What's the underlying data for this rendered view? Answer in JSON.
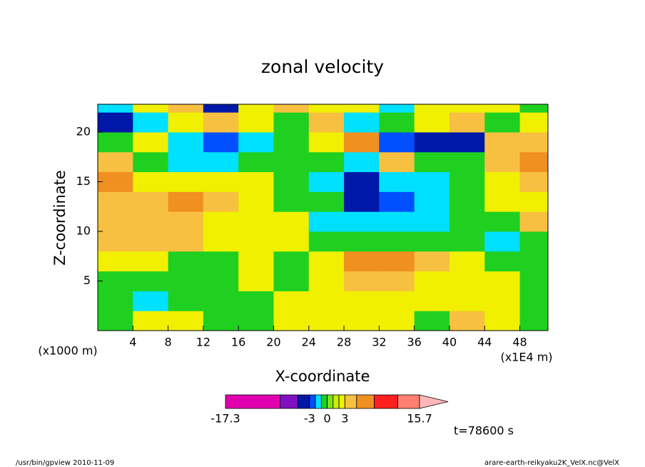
{
  "chart_data": {
    "type": "contour",
    "title": "zonal velocity",
    "x_label": "X-coordinate",
    "y_label": "Z-coordinate",
    "x_unit_label": "(x1E4 m)",
    "y_unit_label": "(x1000 m)",
    "annotation": "t=78600 s",
    "xlim": [
      0,
      51.2
    ],
    "ylim": [
      0,
      22.8
    ],
    "xticks": [
      4,
      8,
      12,
      16,
      20,
      24,
      28,
      32,
      36,
      40,
      44,
      48
    ],
    "yticks": [
      5,
      10,
      15,
      20
    ],
    "x": [
      2,
      6,
      10,
      14,
      18,
      22,
      26,
      30,
      34,
      38,
      42,
      46,
      50
    ],
    "y": [
      1,
      3,
      5,
      7,
      9,
      11,
      13,
      15,
      17,
      19,
      21,
      23
    ],
    "values": [
      [
        -0.5,
        2.5,
        2.5,
        -0.5,
        -0.5,
        2.5,
        2.5,
        2.5,
        2.5,
        -0.5,
        4,
        2.5,
        -0.5
      ],
      [
        -0.5,
        -1.5,
        -0.5,
        -0.5,
        -0.5,
        2.5,
        2.5,
        2.5,
        2.5,
        2.5,
        2.5,
        2.5,
        -0.5
      ],
      [
        -0.5,
        -0.5,
        -0.5,
        -0.5,
        2.5,
        -0.5,
        2.5,
        4,
        4,
        2.5,
        2.5,
        2.5,
        -0.5
      ],
      [
        2.5,
        2.5,
        -0.5,
        -0.5,
        2.5,
        -0.5,
        2.5,
        6.5,
        6.5,
        4,
        2.5,
        -0.5,
        -0.5
      ],
      [
        4,
        4,
        4,
        2.5,
        2.5,
        2.5,
        -0.5,
        -0.5,
        -0.5,
        -0.5,
        -0.5,
        -1.5,
        -0.5
      ],
      [
        4,
        4,
        4,
        2.5,
        2.5,
        2.5,
        -1.5,
        -1.5,
        -1.5,
        -1.5,
        -0.5,
        -0.5,
        4
      ],
      [
        4,
        4,
        6.5,
        4,
        2.5,
        -0.5,
        -0.5,
        -4,
        -2.5,
        -1.5,
        -0.5,
        2.5,
        2.5
      ],
      [
        6.5,
        2.5,
        2.5,
        2.5,
        2.5,
        -0.5,
        -1.5,
        -4,
        -1.5,
        -1.5,
        -0.5,
        2.5,
        4
      ],
      [
        4,
        -0.5,
        -1.5,
        -1.5,
        -0.5,
        -0.5,
        -0.5,
        -1.5,
        4,
        -0.5,
        -0.5,
        4,
        6.5
      ],
      [
        -0.5,
        2.5,
        -1.5,
        -2.5,
        -1.5,
        -0.5,
        2.5,
        6.5,
        -2.5,
        -4,
        -4,
        4,
        4
      ],
      [
        -4,
        -1.5,
        2.5,
        4,
        2.5,
        -0.5,
        4,
        -1.5,
        -0.5,
        2.5,
        4,
        -0.5,
        2.5
      ],
      [
        -1.5,
        2.5,
        4,
        -4,
        2.5,
        4,
        2.5,
        2.5,
        -1.5,
        2.5,
        2.5,
        2.5,
        -0.5
      ]
    ],
    "levels": [
      -17.3,
      -8,
      -5,
      -3,
      -2,
      -1,
      0,
      1,
      2,
      3,
      5,
      8,
      12,
      15.7
    ],
    "colors": [
      "#e000b0",
      "#8010c0",
      "#0018a8",
      "#0050ff",
      "#00e0ff",
      "#20d020",
      "#80e020",
      "#c8f000",
      "#f0f000",
      "#f8c040",
      "#f09020",
      "#ff2020",
      "#ff8070"
    ],
    "extend_color": "#ffb8b8",
    "colorbar_ticks": [
      -17.3,
      -3,
      0,
      3,
      15.7
    ]
  },
  "footer": {
    "left": "/usr/bin/gpview  2010-11-09",
    "right": "arare-earth-reikyaku2K_VelX.nc@VelX"
  }
}
